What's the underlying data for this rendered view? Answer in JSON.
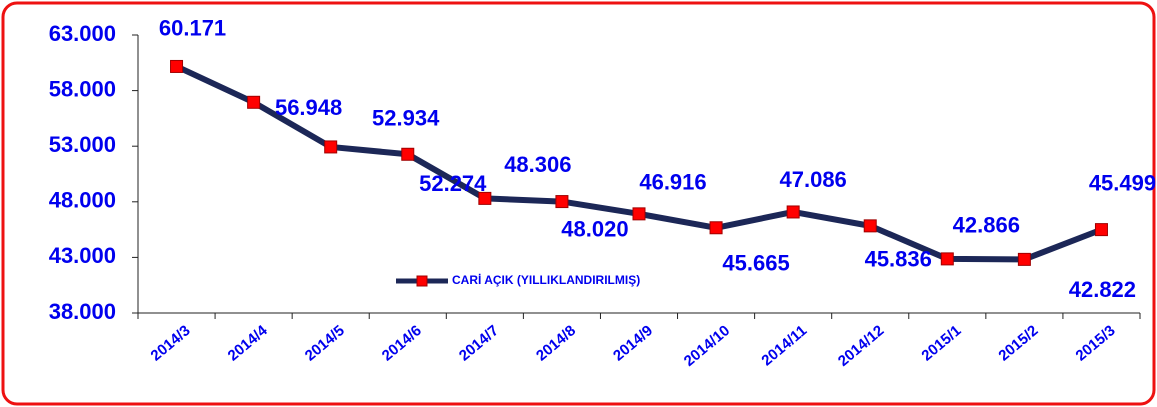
{
  "chart_data": {
    "type": "line",
    "categories": [
      "2014/3",
      "2014/4",
      "2014/5",
      "2014/6",
      "2014/7",
      "2014/8",
      "2014/9",
      "2014/10",
      "2014/11",
      "2014/12",
      "2015/1",
      "2015/2",
      "2015/3"
    ],
    "series": [
      {
        "name": "CARİ AÇIK (YILLIKLANDIRILMIŞ)",
        "color": "#1c2757",
        "marker_color": "#ff0000",
        "values": [
          60171,
          56948,
          52934,
          52274,
          48306,
          48020,
          46916,
          45665,
          47086,
          45836,
          42866,
          42822,
          45499
        ],
        "value_labels": [
          "60.171",
          "56.948",
          "52.934",
          "52.274",
          "48.306",
          "48.020",
          "46.916",
          "45.665",
          "47.086",
          "45.836",
          "42.866",
          "42.822",
          "45.499"
        ]
      }
    ],
    "ylim": [
      38000,
      63000
    ],
    "yticks": [
      {
        "value": 38000,
        "label": "38.000"
      },
      {
        "value": 43000,
        "label": "43.000"
      },
      {
        "value": 48000,
        "label": "48.000"
      },
      {
        "value": 53000,
        "label": "53.000"
      },
      {
        "value": 58000,
        "label": "58.000"
      },
      {
        "value": 63000,
        "label": "63.000"
      }
    ],
    "legend": "center"
  }
}
